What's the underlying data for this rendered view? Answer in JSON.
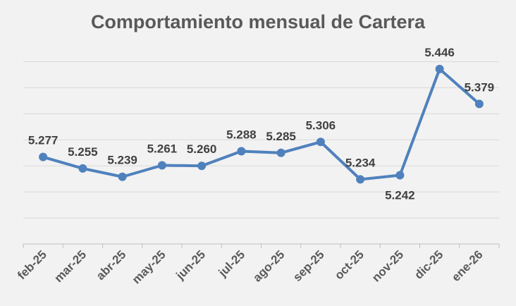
{
  "chart_data": {
    "type": "line",
    "title": "Comportamiento mensual de Cartera",
    "xlabel": "",
    "ylabel": "",
    "categories": [
      "feb-25",
      "mar-25",
      "abr-25",
      "may-25",
      "jun-25",
      "jul-25",
      "ago-25",
      "sep-25",
      "oct-25",
      "nov-25",
      "dic-25",
      "ene-26"
    ],
    "series": [
      {
        "values": [
          5.277,
          5.255,
          5.239,
          5.261,
          5.26,
          5.288,
          5.285,
          5.306,
          5.234,
          5.242,
          5.446,
          5.379
        ],
        "data_labels": [
          "5.277",
          "5.255",
          "5.239",
          "5.261",
          "5.260",
          "5.288",
          "5.285",
          "5.306",
          "5.234",
          "5.242",
          "5.446",
          "5.379"
        ],
        "color": "#4f81bd"
      }
    ],
    "ylim": [
      5.11,
      5.5
    ],
    "y_gridlines": [
      5.11,
      5.16,
      5.21,
      5.26,
      5.31,
      5.36,
      5.41,
      5.46
    ],
    "y_tick_labels_shown": false,
    "grid": true,
    "legend": "none",
    "label_placement": [
      "above",
      "above",
      "above",
      "above",
      "above",
      "above",
      "above",
      "above",
      "above",
      "below",
      "above",
      "above"
    ]
  },
  "colors": {
    "background": "#f2f2f2",
    "series": "#4f81bd",
    "grid": "#d9d9d9",
    "text": "#595959"
  }
}
